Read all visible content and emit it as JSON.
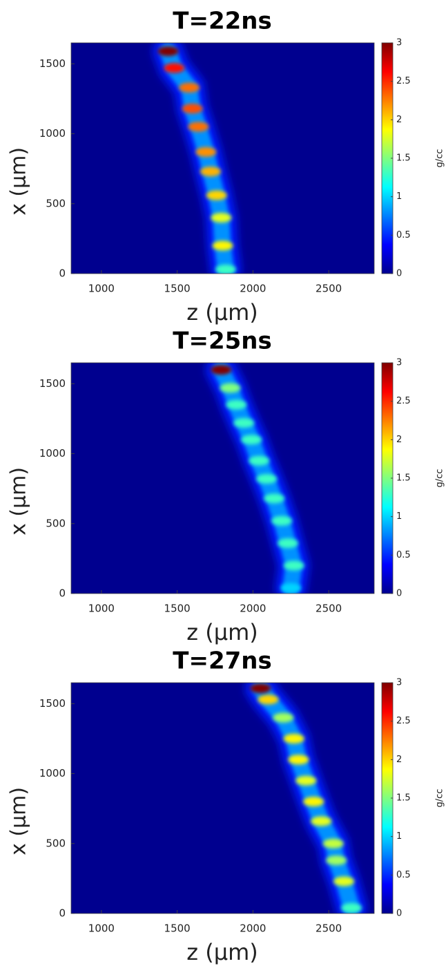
{
  "chart_data": [
    {
      "type": "heatmap",
      "title": "T=22ns",
      "x_label": "z (μm)",
      "y_label": "x (μm)",
      "xlim": [
        800,
        2800
      ],
      "ylim": [
        0,
        1650
      ],
      "xticks": [
        1000,
        1500,
        2000,
        2500
      ],
      "yticks": [
        0,
        500,
        1000,
        1500
      ],
      "background": "#00008f",
      "colormap": "jet",
      "colorbar": {
        "label": "g/cc",
        "lim": [
          0,
          3
        ],
        "ticks": [
          0,
          0.5,
          1,
          1.5,
          2,
          2.5,
          3
        ]
      },
      "knots": {
        "z": [
          1820,
          1800,
          1790,
          1760,
          1720,
          1690,
          1640,
          1600,
          1580,
          1480,
          1440
        ],
        "x": [
          30,
          200,
          400,
          560,
          730,
          870,
          1050,
          1180,
          1330,
          1470,
          1590
        ],
        "values": [
          1.3,
          1.9,
          1.8,
          2.0,
          2.1,
          2.2,
          2.3,
          2.4,
          2.3,
          2.6,
          3.0
        ]
      }
    },
    {
      "type": "heatmap",
      "title": "T=25ns",
      "x_label": "z (μm)",
      "y_label": "x (μm)",
      "xlim": [
        800,
        2800
      ],
      "ylim": [
        0,
        1650
      ],
      "xticks": [
        1000,
        1500,
        2000,
        2500
      ],
      "yticks": [
        0,
        500,
        1000,
        1500
      ],
      "background": "#00008f",
      "colormap": "jet",
      "colorbar": {
        "label": "g/cc",
        "lim": [
          0,
          3
        ],
        "ticks": [
          0,
          0.5,
          1,
          1.5,
          2,
          2.5,
          3
        ]
      },
      "knots": {
        "z": [
          2250,
          2270,
          2230,
          2190,
          2140,
          2090,
          2040,
          1990,
          1940,
          1890,
          1850,
          1790
        ],
        "x": [
          40,
          200,
          360,
          520,
          680,
          820,
          950,
          1100,
          1220,
          1350,
          1470,
          1600
        ],
        "values": [
          1.0,
          1.3,
          1.3,
          1.3,
          1.3,
          1.3,
          1.3,
          1.3,
          1.3,
          1.3,
          1.5,
          3.0
        ]
      }
    },
    {
      "type": "heatmap",
      "title": "T=27ns",
      "x_label": "z (μm)",
      "y_label": "x (μm)",
      "xlim": [
        800,
        2800
      ],
      "ylim": [
        0,
        1650
      ],
      "xticks": [
        1000,
        1500,
        2000,
        2500
      ],
      "yticks": [
        0,
        500,
        1000,
        1500
      ],
      "background": "#00008f",
      "colormap": "jet",
      "colorbar": {
        "label": "g/cc",
        "lim": [
          0,
          3
        ],
        "ticks": [
          0,
          0.5,
          1,
          1.5,
          2,
          2.5,
          3
        ]
      },
      "knots": {
        "z": [
          2650,
          2600,
          2550,
          2530,
          2450,
          2400,
          2350,
          2300,
          2270,
          2200,
          2100,
          2050
        ],
        "x": [
          40,
          230,
          380,
          500,
          660,
          800,
          950,
          1100,
          1250,
          1400,
          1530,
          1610
        ],
        "values": [
          1.3,
          1.8,
          1.6,
          1.7,
          1.8,
          1.9,
          1.8,
          1.9,
          1.9,
          1.6,
          2.0,
          3.0
        ]
      }
    }
  ]
}
